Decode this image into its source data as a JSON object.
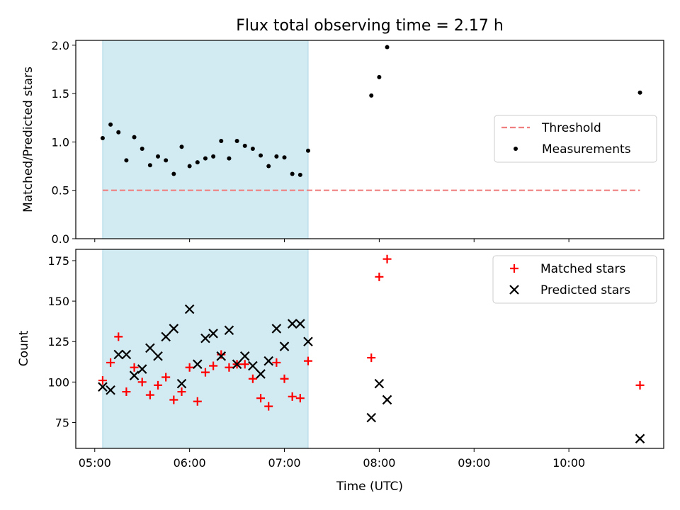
{
  "title": "Flux total observing time = 2.17 h",
  "colors": {
    "measurement": "#000000",
    "threshold": "#f08080",
    "matched": "#ff0000",
    "predicted": "#000000",
    "highlight": "#add8e6"
  },
  "chart_data": [
    {
      "type": "scatter",
      "ylabel": "Matched/Predicted stars",
      "ylim": [
        0,
        2.05
      ],
      "yticks": [
        "0.0",
        "0.5",
        "1.0",
        "1.5",
        "2.0"
      ],
      "xlim": [
        "04:48",
        "11:00"
      ],
      "highlight_span": [
        "05:05",
        "07:15"
      ],
      "legend": {
        "position": "center-right",
        "entries": [
          "Threshold",
          "Measurements"
        ]
      },
      "series": [
        {
          "name": "Threshold",
          "style": "dashed-line",
          "x": [
            "05:05",
            "10:45"
          ],
          "y": [
            0.5,
            0.5
          ]
        },
        {
          "name": "Measurements",
          "style": "dot",
          "x": [
            "05:05",
            "05:10",
            "05:15",
            "05:20",
            "05:25",
            "05:30",
            "05:35",
            "05:40",
            "05:45",
            "05:50",
            "05:55",
            "06:00",
            "06:05",
            "06:10",
            "06:15",
            "06:20",
            "06:25",
            "06:30",
            "06:35",
            "06:40",
            "06:45",
            "06:50",
            "06:55",
            "07:00",
            "07:05",
            "07:10",
            "07:15",
            "07:55",
            "08:00",
            "08:05",
            "10:45"
          ],
          "y": [
            1.04,
            1.18,
            1.1,
            0.81,
            1.05,
            0.93,
            0.76,
            0.85,
            0.81,
            0.67,
            0.95,
            0.75,
            0.79,
            0.83,
            0.85,
            1.01,
            0.83,
            1.01,
            0.96,
            0.93,
            0.86,
            0.75,
            0.85,
            0.84,
            0.67,
            0.66,
            0.91,
            1.48,
            1.67,
            1.98,
            1.51
          ]
        }
      ]
    },
    {
      "type": "scatter",
      "xlabel": "Time (UTC)",
      "ylabel": "Count",
      "ylim": [
        59,
        182
      ],
      "yticks": [
        "75",
        "100",
        "125",
        "150",
        "175"
      ],
      "xlim": [
        "04:48",
        "11:00"
      ],
      "xticks": [
        "05:00",
        "06:00",
        "07:00",
        "08:00",
        "09:00",
        "10:00"
      ],
      "highlight_span": [
        "05:05",
        "07:15"
      ],
      "legend": {
        "position": "top-right",
        "entries": [
          "Matched stars",
          "Predicted stars"
        ]
      },
      "series": [
        {
          "name": "Matched stars",
          "marker": "plus",
          "x": [
            "05:05",
            "05:10",
            "05:15",
            "05:20",
            "05:25",
            "05:30",
            "05:35",
            "05:40",
            "05:45",
            "05:50",
            "05:55",
            "06:00",
            "06:05",
            "06:10",
            "06:15",
            "06:20",
            "06:25",
            "06:30",
            "06:35",
            "06:40",
            "06:45",
            "06:50",
            "06:55",
            "07:00",
            "07:05",
            "07:10",
            "07:15",
            "07:55",
            "08:00",
            "08:05",
            "10:45"
          ],
          "y": [
            101,
            112,
            128,
            94,
            109,
            100,
            92,
            98,
            103,
            89,
            94,
            109,
            88,
            106,
            110,
            117,
            109,
            111,
            111,
            102,
            90,
            85,
            112,
            102,
            91,
            90,
            113,
            115,
            165,
            176,
            98
          ]
        },
        {
          "name": "Predicted stars",
          "marker": "x",
          "x": [
            "05:05",
            "05:10",
            "05:15",
            "05:20",
            "05:25",
            "05:30",
            "05:35",
            "05:40",
            "05:45",
            "05:50",
            "05:55",
            "06:00",
            "06:05",
            "06:10",
            "06:15",
            "06:20",
            "06:25",
            "06:30",
            "06:35",
            "06:40",
            "06:45",
            "06:50",
            "06:55",
            "07:00",
            "07:05",
            "07:10",
            "07:15",
            "07:55",
            "08:00",
            "08:05",
            "10:45"
          ],
          "y": [
            97,
            95,
            117,
            117,
            104,
            108,
            121,
            116,
            128,
            133,
            99,
            145,
            111,
            127,
            130,
            116,
            132,
            111,
            116,
            110,
            105,
            113,
            133,
            122,
            136,
            136,
            125,
            78,
            99,
            89,
            65
          ]
        }
      ]
    }
  ]
}
